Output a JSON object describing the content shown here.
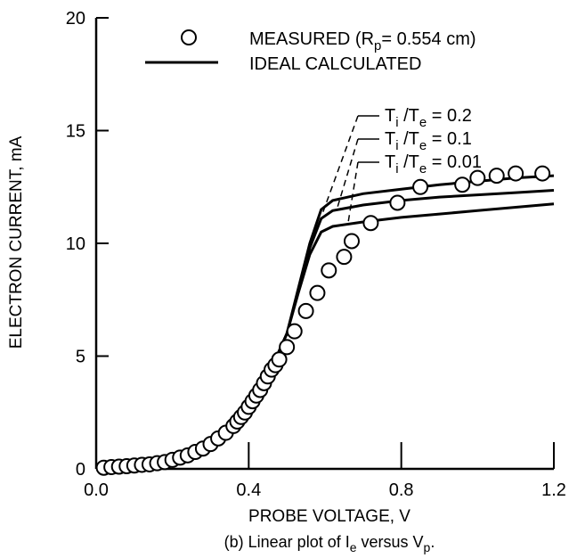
{
  "chart_data": {
    "type": "line",
    "title": "",
    "xlabel": "PROBE VOLTAGE, V",
    "ylabel": "ELECTRON CURRENT, mA",
    "caption": {
      "prefix": "(b) Linear plot of I",
      "sub1": "e",
      "mid": " versus V",
      "sub2": "p",
      "suffix": "."
    },
    "xlim": [
      0.0,
      1.2
    ],
    "ylim": [
      0,
      20
    ],
    "x_ticks": [
      0.0,
      0.4,
      0.8,
      1.2
    ],
    "x_tick_labels": [
      "0.0",
      "0.4",
      "0.8",
      "1.2"
    ],
    "y_ticks": [
      0,
      5,
      10,
      15,
      20
    ],
    "y_tick_labels": [
      "0",
      "5",
      "10",
      "15",
      "20"
    ],
    "grid": false,
    "legend": {
      "position": "top",
      "measured": {
        "prefix": "MEASURED (R",
        "sub": "p",
        "suffix": "= 0.554 cm)"
      },
      "ideal": {
        "label": "IDEAL CALCULATED"
      }
    },
    "series": [
      {
        "kind": "markers",
        "x": [
          0.02,
          0.04,
          0.06,
          0.08,
          0.1,
          0.12,
          0.14,
          0.16,
          0.18,
          0.2,
          0.22,
          0.24,
          0.26,
          0.28,
          0.3,
          0.32,
          0.34,
          0.36,
          0.37,
          0.38,
          0.39,
          0.4,
          0.41,
          0.42,
          0.43,
          0.44,
          0.45,
          0.46,
          0.47,
          0.48,
          0.5,
          0.52,
          0.55,
          0.58,
          0.61,
          0.65,
          0.67,
          0.72,
          0.79,
          0.85,
          0.96,
          1.0,
          1.05,
          1.1,
          1.17
        ],
        "y": [
          0.05,
          0.08,
          0.1,
          0.12,
          0.15,
          0.18,
          0.2,
          0.25,
          0.3,
          0.4,
          0.5,
          0.6,
          0.75,
          0.9,
          1.1,
          1.35,
          1.6,
          1.9,
          2.1,
          2.3,
          2.5,
          2.75,
          3.0,
          3.25,
          3.5,
          3.8,
          4.1,
          4.4,
          4.6,
          4.85,
          5.4,
          6.1,
          7.0,
          7.8,
          8.8,
          9.4,
          10.1,
          10.9,
          11.8,
          12.5,
          12.6,
          12.9,
          13.0,
          13.1,
          13.1
        ]
      },
      {
        "kind": "line",
        "x": [
          0.0,
          0.1,
          0.2,
          0.3,
          0.4,
          0.45,
          0.5,
          0.53,
          0.56,
          0.59,
          0.62,
          0.7,
          0.8,
          0.9,
          1.0,
          1.1,
          1.2
        ],
        "y": [
          0.0,
          0.1,
          0.4,
          1.2,
          2.8,
          4.1,
          6.0,
          8.0,
          10.0,
          11.5,
          11.9,
          12.2,
          12.4,
          12.6,
          12.75,
          12.9,
          13.0
        ]
      },
      {
        "kind": "line",
        "x": [
          0.0,
          0.1,
          0.2,
          0.3,
          0.4,
          0.45,
          0.5,
          0.53,
          0.56,
          0.59,
          0.62,
          0.7,
          0.8,
          0.9,
          1.0,
          1.1,
          1.2
        ],
        "y": [
          0.0,
          0.1,
          0.4,
          1.2,
          2.8,
          4.1,
          6.0,
          7.9,
          9.8,
          11.1,
          11.45,
          11.7,
          11.9,
          12.05,
          12.15,
          12.25,
          12.35
        ]
      },
      {
        "kind": "line",
        "x": [
          0.0,
          0.1,
          0.2,
          0.3,
          0.4,
          0.45,
          0.5,
          0.53,
          0.56,
          0.59,
          0.62,
          0.7,
          0.8,
          0.9,
          1.0,
          1.1,
          1.2
        ],
        "y": [
          0.0,
          0.1,
          0.4,
          1.2,
          2.8,
          4.1,
          6.0,
          7.8,
          9.5,
          10.5,
          10.75,
          10.95,
          11.15,
          11.3,
          11.45,
          11.6,
          11.75
        ]
      }
    ],
    "annotations": [
      {
        "prefix": "T",
        "sub1": "i",
        "mid": " /T",
        "sub2": "e",
        "suffix": " = 0.2",
        "target": [
          0.595,
          11.4
        ]
      },
      {
        "prefix": "T",
        "sub1": "i",
        "mid": " /T",
        "sub2": "e",
        "suffix": " = 0.1",
        "target": [
          0.63,
          11.45
        ]
      },
      {
        "prefix": "T",
        "sub1": "i",
        "mid": " /T",
        "sub2": "e",
        "suffix": " = 0.01",
        "target": [
          0.66,
          10.85
        ]
      }
    ]
  }
}
